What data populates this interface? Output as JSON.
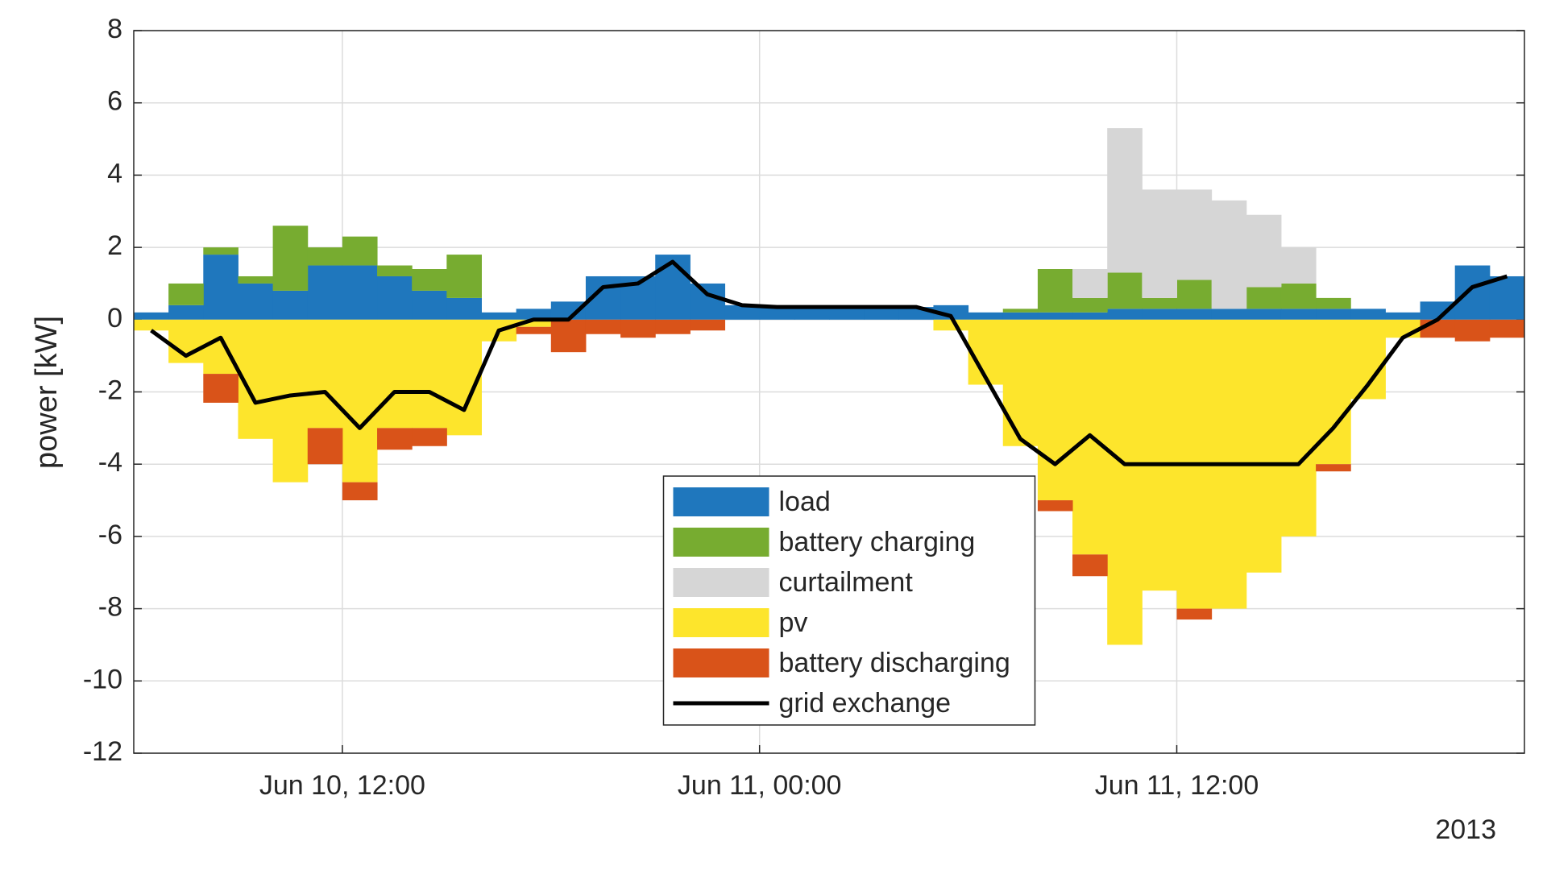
{
  "chart_data": {
    "type": "bar",
    "stacked": true,
    "ylabel": "power [kW]",
    "year": "2013",
    "x": [
      "Jun 10, 06:00",
      "Jun 10, 07:00",
      "Jun 10, 08:00",
      "Jun 10, 09:00",
      "Jun 10, 10:00",
      "Jun 10, 11:00",
      "Jun 10, 12:00",
      "Jun 10, 13:00",
      "Jun 10, 14:00",
      "Jun 10, 15:00",
      "Jun 10, 16:00",
      "Jun 10, 17:00",
      "Jun 10, 18:00",
      "Jun 10, 19:00",
      "Jun 10, 20:00",
      "Jun 10, 21:00",
      "Jun 10, 22:00",
      "Jun 10, 23:00",
      "Jun 11, 00:00",
      "Jun 11, 01:00",
      "Jun 11, 02:00",
      "Jun 11, 03:00",
      "Jun 11, 04:00",
      "Jun 11, 05:00",
      "Jun 11, 06:00",
      "Jun 11, 07:00",
      "Jun 11, 08:00",
      "Jun 11, 09:00",
      "Jun 11, 10:00",
      "Jun 11, 11:00",
      "Jun 11, 12:00",
      "Jun 11, 13:00",
      "Jun 11, 14:00",
      "Jun 11, 15:00",
      "Jun 11, 16:00",
      "Jun 11, 17:00",
      "Jun 11, 18:00",
      "Jun 11, 19:00",
      "Jun 11, 20:00",
      "Jun 11, 21:00"
    ],
    "xticks": [
      "Jun 10, 12:00",
      "Jun 11, 00:00",
      "Jun 11, 12:00"
    ],
    "ylim": [
      -12,
      8
    ],
    "yticks": [
      -12,
      -10,
      -8,
      -6,
      -4,
      -2,
      0,
      2,
      4,
      6,
      8
    ],
    "grid": true,
    "legend": "lower center",
    "series": [
      {
        "name": "load",
        "color": "#1f77bd",
        "values": [
          0.2,
          0.4,
          1.8,
          1.0,
          0.8,
          1.5,
          1.5,
          1.2,
          0.8,
          0.6,
          0.2,
          0.3,
          0.5,
          1.2,
          1.2,
          1.8,
          1.0,
          0.4,
          0.35,
          0.35,
          0.35,
          0.35,
          0.35,
          0.4,
          0.2,
          0.2,
          0.2,
          0.2,
          0.3,
          0.3,
          0.3,
          0.3,
          0.3,
          0.3,
          0.3,
          0.3,
          0.2,
          0.5,
          1.5,
          1.2
        ]
      },
      {
        "name": "battery charging",
        "color": "#77ac30",
        "values": [
          0,
          0.6,
          0.2,
          0.2,
          1.8,
          0.5,
          0.8,
          0.3,
          0.6,
          1.2,
          0,
          0,
          0,
          0,
          0,
          0,
          0,
          0,
          0,
          0,
          0,
          0,
          0,
          0,
          0,
          0.1,
          1.2,
          0.4,
          1.0,
          0.3,
          0.8,
          0,
          0.6,
          0.7,
          0.3,
          0,
          0,
          0,
          0,
          0
        ]
      },
      {
        "name": "curtailment",
        "color": "#d6d6d6",
        "values": [
          0,
          0,
          0,
          0,
          0,
          0,
          0,
          0,
          0,
          0,
          0,
          0,
          0,
          0,
          0,
          0,
          0,
          0,
          0,
          0,
          0,
          0,
          0,
          0,
          0,
          0,
          0,
          0.8,
          4.0,
          3.0,
          2.5,
          3.0,
          2.0,
          1.0,
          0,
          0,
          0,
          0,
          0,
          0
        ]
      },
      {
        "name": "pv",
        "color": "#fde52c",
        "values": [
          -0.3,
          -1.2,
          -1.5,
          -3.3,
          -4.5,
          -3.0,
          -4.5,
          -3.0,
          -3.0,
          -3.2,
          -0.6,
          -0.2,
          0,
          0,
          0,
          0,
          0,
          0,
          0,
          0,
          0,
          0,
          0,
          -0.3,
          -1.8,
          -3.5,
          -5.0,
          -6.5,
          -9.0,
          -7.5,
          -8.0,
          -8.0,
          -7.0,
          -6.0,
          -4.0,
          -2.2,
          -0.5,
          0,
          0,
          0
        ]
      },
      {
        "name": "battery discharging",
        "color": "#d95319",
        "values": [
          0,
          0,
          -0.8,
          0,
          0,
          -1.0,
          -0.5,
          -0.6,
          -0.5,
          0,
          0,
          -0.2,
          -0.9,
          -0.4,
          -0.5,
          -0.4,
          -0.3,
          0,
          0,
          0,
          0,
          0,
          0,
          0,
          0,
          0,
          -0.3,
          -0.6,
          0,
          0,
          -0.3,
          0,
          0,
          0,
          -0.2,
          0,
          0,
          -0.5,
          -0.6,
          -0.5
        ]
      },
      {
        "name": "grid exchange",
        "type": "line",
        "color": "#000000",
        "values": [
          -0.3,
          -1.0,
          -0.5,
          -2.3,
          -2.1,
          -2.0,
          -3.0,
          -2.0,
          -2.0,
          -2.5,
          -0.3,
          0,
          0,
          0.9,
          1.0,
          1.6,
          0.7,
          0.4,
          0.35,
          0.35,
          0.35,
          0.35,
          0.35,
          0.1,
          -1.6,
          -3.3,
          -4.0,
          -3.2,
          -4.0,
          -4.0,
          -4.0,
          -4.0,
          -4.0,
          -4.0,
          -3.0,
          -1.8,
          -0.5,
          0,
          0.9,
          1.2
        ]
      }
    ]
  }
}
